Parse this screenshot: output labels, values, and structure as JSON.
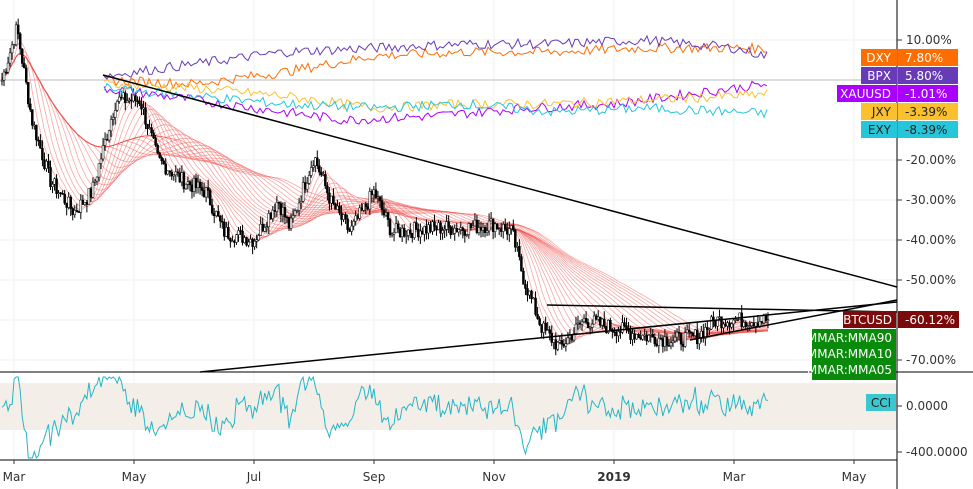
{
  "chart_data": {
    "type": "line",
    "title": "",
    "x_ticks": [
      "Mar",
      "May",
      "Jul",
      "Sep",
      "Nov",
      "2019",
      "Mar",
      "May"
    ],
    "y_ticks": [
      "10.00%",
      "-20.00%",
      "-30.00%",
      "-40.00%",
      "-50.00%",
      "-60.00%",
      "-70.00%"
    ],
    "y_scale": "percent",
    "grid": true,
    "main_series": {
      "name": "BTCUSD",
      "last_value": "-60.12%",
      "color": "#7b0a0a",
      "points": [
        [
          -0.2,
          0
        ],
        [
          0.05,
          13
        ],
        [
          0.3,
          -10
        ],
        [
          0.6,
          -25
        ],
        [
          1.0,
          -33
        ],
        [
          1.3,
          -28
        ],
        [
          1.7,
          -5
        ],
        [
          2.1,
          -5
        ],
        [
          2.4,
          -20
        ],
        [
          2.8,
          -25
        ],
        [
          3.2,
          -28
        ],
        [
          3.5,
          -38
        ],
        [
          4.0,
          -40
        ],
        [
          4.4,
          -30
        ],
        [
          4.6,
          -37
        ],
        [
          5.0,
          -19
        ],
        [
          5.3,
          -31
        ],
        [
          5.6,
          -38
        ],
        [
          6.0,
          -28
        ],
        [
          6.3,
          -38
        ],
        [
          7.0,
          -37
        ],
        [
          7.5,
          -37
        ],
        [
          8.0,
          -36
        ],
        [
          8.3,
          -38
        ],
        [
          8.5,
          -50
        ],
        [
          8.8,
          -62
        ],
        [
          9.1,
          -67
        ],
        [
          9.5,
          -60
        ],
        [
          10.0,
          -62
        ],
        [
          10.5,
          -64
        ],
        [
          11.0,
          -65
        ],
        [
          11.4,
          -64
        ],
        [
          11.7,
          -60
        ],
        [
          12.2,
          -60
        ],
        [
          12.6,
          -60
        ]
      ]
    },
    "comparisons": [
      {
        "name": "DXY",
        "value": "7.80%",
        "color": "#ff6d00",
        "points": [
          [
            1.5,
            0
          ],
          [
            3,
            -1
          ],
          [
            4.5,
            2
          ],
          [
            6,
            6
          ],
          [
            7.5,
            7
          ],
          [
            9,
            7
          ],
          [
            10.5,
            8
          ],
          [
            12,
            8
          ],
          [
            12.6,
            7.8
          ]
        ]
      },
      {
        "name": "BPX",
        "value": "5.80%",
        "color": "#673ab7",
        "points": [
          [
            1.5,
            1
          ],
          [
            3,
            4
          ],
          [
            4.5,
            7
          ],
          [
            6,
            8
          ],
          [
            7.5,
            9
          ],
          [
            9,
            9
          ],
          [
            10.5,
            10
          ],
          [
            12,
            8
          ],
          [
            12.6,
            5.8
          ]
        ]
      },
      {
        "name": "XAUUSD",
        "value": "-1.01%",
        "color": "#aa00ff",
        "points": [
          [
            1.5,
            -2
          ],
          [
            3,
            -5
          ],
          [
            4.5,
            -8
          ],
          [
            5.5,
            -10
          ],
          [
            7,
            -9
          ],
          [
            8.5,
            -7
          ],
          [
            10,
            -6
          ],
          [
            11.5,
            -3
          ],
          [
            12.6,
            -1
          ]
        ]
      },
      {
        "name": "JXY",
        "value": "-3.39%",
        "color": "#fbc02d",
        "points": [
          [
            1.5,
            -1
          ],
          [
            3,
            -2
          ],
          [
            4.5,
            -4
          ],
          [
            6,
            -7
          ],
          [
            7.5,
            -6
          ],
          [
            9,
            -6
          ],
          [
            10.5,
            -5
          ],
          [
            12,
            -4
          ],
          [
            12.6,
            -3.4
          ]
        ]
      },
      {
        "name": "EXY",
        "value": "-8.39%",
        "color": "#26c6da",
        "points": [
          [
            1.5,
            -2
          ],
          [
            3,
            -4
          ],
          [
            4.5,
            -6
          ],
          [
            6,
            -7
          ],
          [
            7.5,
            -6
          ],
          [
            9,
            -8
          ],
          [
            10.5,
            -7
          ],
          [
            12,
            -8
          ],
          [
            12.6,
            -8.4
          ]
        ]
      }
    ],
    "indicator_labels": [
      "MMAR:MMA90",
      "MMAR:MMA10",
      "MMAR:MMA05"
    ],
    "cci": {
      "name": "CCI",
      "y_ticks": [
        "0.0000",
        "-400.0000"
      ],
      "color": "#26a69a"
    }
  }
}
